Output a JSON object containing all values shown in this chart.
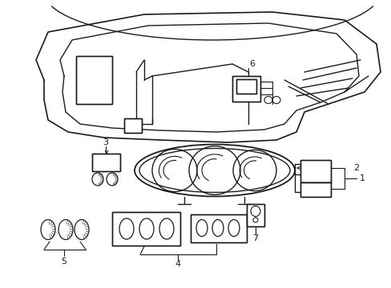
{
  "bg_color": "#ffffff",
  "line_color": "#1a1a1a",
  "lw": 1.0,
  "fig_width": 4.89,
  "fig_height": 3.6,
  "dpi": 100
}
